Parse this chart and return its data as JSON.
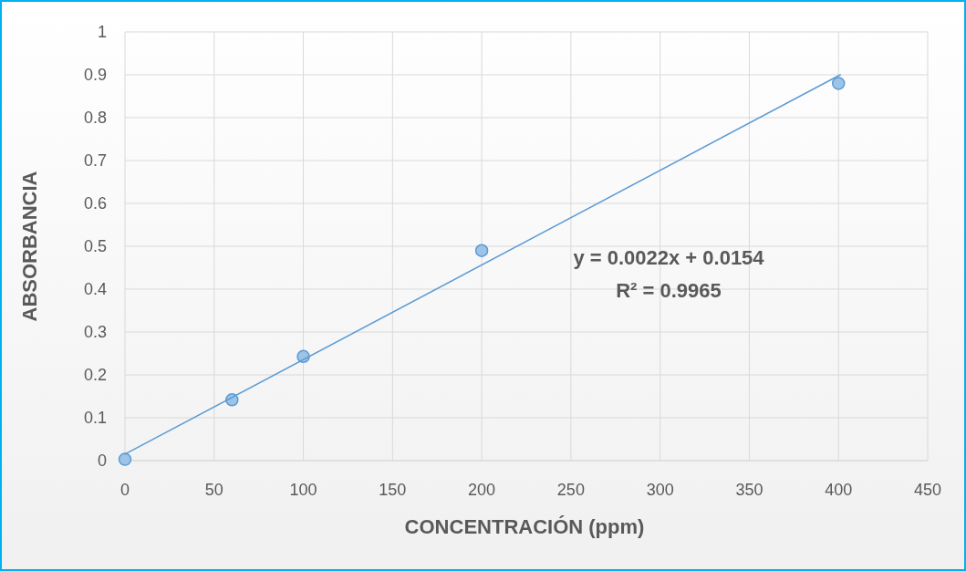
{
  "chart_data": {
    "type": "scatter",
    "xlabel": "CONCENTRACIÓN (ppm)",
    "ylabel": "ABSORBANCIA",
    "annotations": [
      "y = 0.0022x + 0.0154",
      "R² = 0.9965"
    ],
    "x": [
      0,
      60,
      100,
      200,
      400
    ],
    "series": [
      {
        "color": "#5b9bd5",
        "values": [
          0.003,
          0.142,
          0.243,
          0.49,
          0.88
        ],
        "marker": "circle"
      },
      {
        "type": "line",
        "color": "#5b9bd5",
        "x": [
          0,
          401
        ],
        "values": [
          0.015,
          0.9
        ],
        "marker": "none",
        "line_style": "solid"
      }
    ],
    "xlim": [
      0,
      450
    ],
    "xticks": [
      0,
      50,
      100,
      150,
      200,
      250,
      300,
      350,
      400,
      450
    ],
    "ylim": [
      0,
      1
    ],
    "yticks": [
      0,
      0.1,
      0.2,
      0.3,
      0.4,
      0.5,
      0.6,
      0.7,
      0.8,
      0.9,
      1
    ],
    "grid": true
  }
}
